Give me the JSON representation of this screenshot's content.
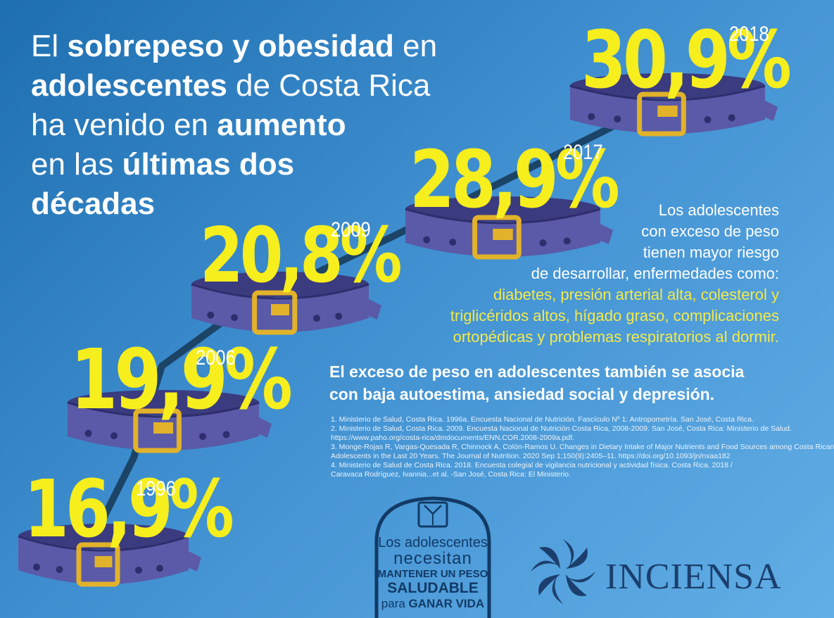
{
  "title": {
    "p1": "El ",
    "b1": "sobrepeso y obesidad",
    "p2": " en",
    "b2": "adolescentes",
    "p3": " de Costa Rica",
    "p4": "ha venido en ",
    "b3": "aumento",
    "p5": "en las ",
    "b4": "últimas dos",
    "b5": "décadas"
  },
  "chart_data": {
    "type": "line",
    "x": [
      "1996",
      "2006",
      "2009",
      "2017",
      "2018"
    ],
    "values": [
      16.9,
      19.9,
      20.8,
      28.9,
      30.9
    ],
    "value_labels": [
      "16,9%",
      "19,9%",
      "20,8%",
      "28,9%",
      "30,9%"
    ]
  },
  "info": {
    "line1": "Los adolescentes",
    "line2": "con exceso de peso",
    "line3": "tienen mayor riesgo",
    "line4": "de desarrollar, enfermedades como:",
    "hl1": "diabetes, presión arterial alta, colesterol y",
    "hl2": "triglicéridos altos, hígado graso, complicaciones",
    "hl3": "ortopédicas y problemas respiratorios al dormir."
  },
  "bold_message": {
    "line1": "El exceso de peso en adolescentes también se asocia",
    "line2": "con baja autoestima, ansiedad social y depresión."
  },
  "references": [
    "1. Ministerio de Salud, Costa Rica. 1996a. Encuesta Nacional de Nutrición. Fascículo Nº 1: Antropometría. San José, Costa Rica.",
    "2. Ministerio de Salud, Costa Rica. 2009. Encuesta Nacional de Nutrición Costa Rica, 2008-2009. San José, Costa Rica: Ministerio de Salud.",
    "https://www.paho.org/costa-rica/dmdocuments/ENN.COR.2008-2009a.pdf.",
    "3. Monge-Rojas R, Vargas-Quesada R, Chinnock A, Colón-Ramos U. Changes in Dietary Intake of Major Nutrients and Food Sources among Costa Rican",
    "Adolescents in the Last 20 Years. The Journal of Nutrition. 2020 Sep 1;150(9):2405–11. https://doi.org/10.1093/jn/nxaa182",
    "4. Ministerio de Salud de Costa Rica. 2018. Encuesta colegial de vigilancia nutricional y actividad física. Costa Rica. 2018 /",
    "Caravaca Rodríguez, Ivannia...et al. -San José, Costa Rica: El Ministerio."
  ],
  "badge": {
    "l1": "Los adolescentes",
    "l2": "necesitan",
    "l3": "MANTENER UN PESO",
    "l4": "SALUDABLE",
    "l5a": "para ",
    "l5b": "GANAR VIDA"
  },
  "logo": {
    "name": "INCIENSA"
  },
  "colors": {
    "background_start": "#1e6fb0",
    "background_end": "#62aee6",
    "percent": "#f7ee1e",
    "highlight_text": "#f4e94a",
    "belt": "#5a5aa8",
    "buckle": "#e1b22a",
    "logo": "#1b3f6d"
  }
}
